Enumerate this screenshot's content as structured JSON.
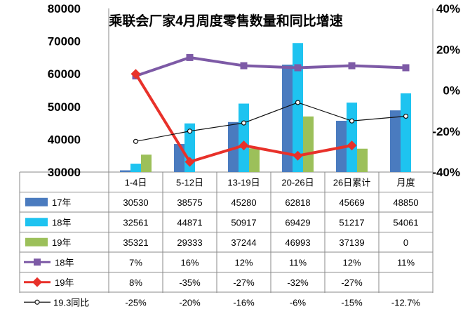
{
  "chart_data": {
    "type": "bar",
    "title": "乘联会厂家4月周度零售数量和同比增速",
    "categories": [
      "1-4日",
      "5-12日",
      "13-19日",
      "20-26日",
      "26日累计",
      "月度"
    ],
    "y_left": {
      "ticks": [
        "80000",
        "70000",
        "60000",
        "50000",
        "40000",
        "30000"
      ],
      "min": 30000,
      "max": 80000
    },
    "y_right": {
      "ticks": [
        "40%",
        "20%",
        "0%",
        "-20%",
        "-40%"
      ],
      "min": -40,
      "max": 40
    },
    "bar_series": [
      {
        "name": "17年",
        "color": "#4a7bbf",
        "values": [
          30530,
          38575,
          45280,
          62818,
          45669,
          48850
        ],
        "labels": [
          "30530",
          "38575",
          "45280",
          "62818",
          "45669",
          "48850"
        ]
      },
      {
        "name": "18年",
        "color": "#1ec3f0",
        "values": [
          32561,
          44871,
          50917,
          69429,
          51217,
          54061
        ],
        "labels": [
          "32561",
          "44871",
          "50917",
          "69429",
          "51217",
          "54061"
        ]
      },
      {
        "name": "19年",
        "color": "#9cc05a",
        "values": [
          35321,
          29333,
          37244,
          46993,
          37139,
          0
        ],
        "labels": [
          "35321",
          "29333",
          "37244",
          "46993",
          "37139",
          "0"
        ]
      }
    ],
    "line_series": [
      {
        "name": "18年",
        "color": "#7d5aa6",
        "marker": "square",
        "values": [
          7,
          16,
          12,
          11,
          12,
          11
        ],
        "labels": [
          "7%",
          "16%",
          "12%",
          "11%",
          "12%",
          "11%"
        ]
      },
      {
        "name": "19年",
        "color": "#e8312a",
        "marker": "diamond",
        "values": [
          8,
          -35,
          -27,
          -32,
          -27,
          null
        ],
        "labels": [
          "8%",
          "-35%",
          "-27%",
          "-32%",
          "-27%",
          ""
        ]
      },
      {
        "name": "19.3同比",
        "color": "#111111",
        "marker": "circle",
        "values": [
          -25,
          -20,
          -16,
          -6,
          -15,
          -12.7
        ],
        "labels": [
          "-25%",
          "-20%",
          "-16%",
          "-6%",
          "-15%",
          "-12.7%"
        ]
      }
    ]
  }
}
